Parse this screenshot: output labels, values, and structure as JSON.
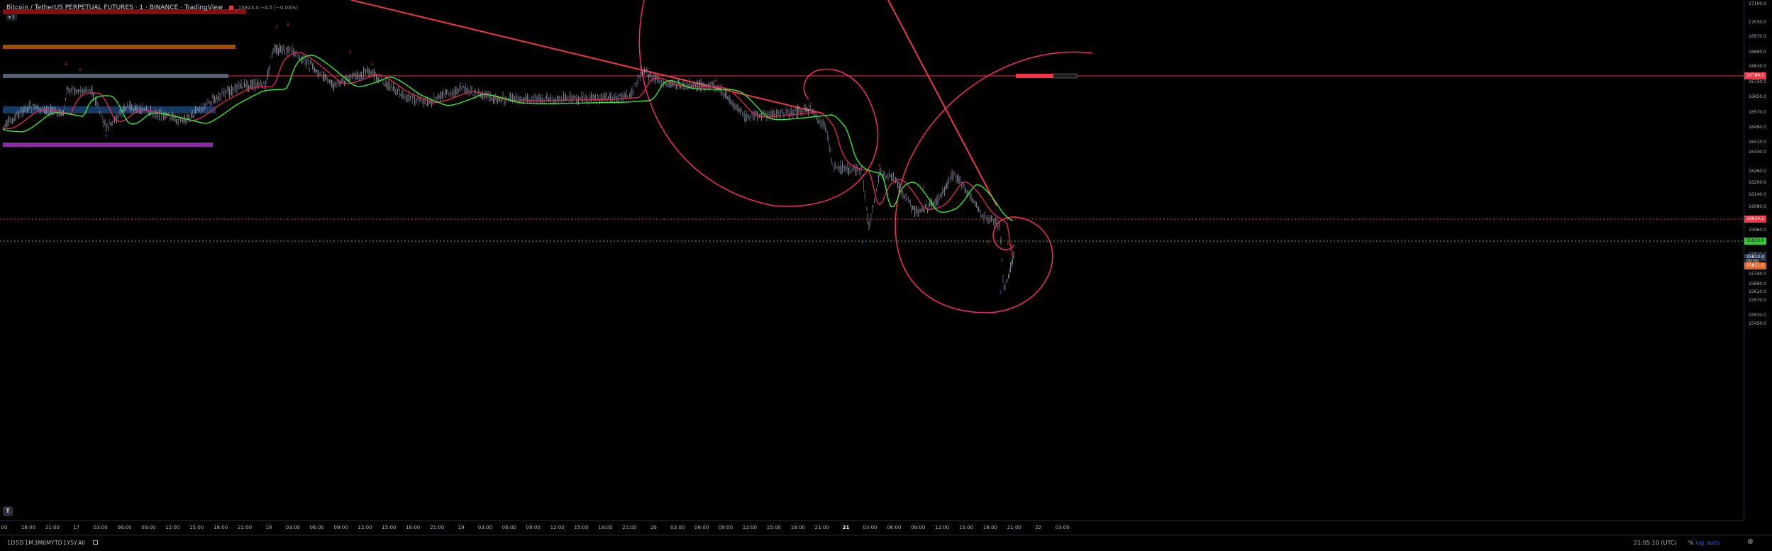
{
  "header": {
    "symbol_title": "Bitcoin / TetherUS PERPETUAL FUTURES · 1 · BINANCE · TradingView",
    "quote": "15813.4 −4.5 (−0.03%)",
    "indicator_pill": "▾ 3"
  },
  "colors": {
    "background": "#000000",
    "candle_up": "#c8ccd6",
    "candle_down": "#7f8aa8",
    "ema_fast": "#e0264f",
    "ema_slow": "#33ee33",
    "drawing_red": "#f23645",
    "drawing_pink": "#ff2a61",
    "zone_darkred": "#8b0e0e",
    "zone_orange": "#a14d00",
    "zone_teal": "#2c6a78",
    "zone_blue": "#173a63",
    "zone_purple": "#8e2aa6",
    "level_red": "#f23645",
    "level_green": "#30d030"
  },
  "price_scale": {
    "ticks": [
      "17100.0",
      "17030.0",
      "16970.0",
      "16890.0",
      "16810.0",
      "16730.0",
      "16650.0",
      "16570.0",
      "16490.0",
      "16410.0",
      "16330.0",
      "16260.0",
      "16200.0",
      "16140.0",
      "16080.0",
      "16020.0",
      "15960.0",
      "15880.0",
      "15820.0",
      "15740.0",
      "15690.0",
      "15610.0",
      "15570.0",
      "15530.0",
      "15450.0"
    ],
    "tag_horizontal_ray": "16780.0",
    "tag_red_level": "16024.2",
    "tag_green_level": "15933.0",
    "tag_last_price": "15813.4",
    "tag_countdown": "00:50",
    "tag_orange": "15821.0"
  },
  "time_scale": {
    "labels": [
      {
        "t": "00",
        "bold": false
      },
      {
        "t": "18:00",
        "bold": false
      },
      {
        "t": "21:00",
        "bold": false
      },
      {
        "t": "17",
        "bold": false
      },
      {
        "t": "03:00",
        "bold": false
      },
      {
        "t": "06:00",
        "bold": false
      },
      {
        "t": "09:00",
        "bold": false
      },
      {
        "t": "12:00",
        "bold": false
      },
      {
        "t": "15:00",
        "bold": false
      },
      {
        "t": "18:00",
        "bold": false
      },
      {
        "t": "21:00",
        "bold": false
      },
      {
        "t": "18",
        "bold": false
      },
      {
        "t": "03:00",
        "bold": false
      },
      {
        "t": "06:00",
        "bold": false
      },
      {
        "t": "09:00",
        "bold": false
      },
      {
        "t": "12:00",
        "bold": false
      },
      {
        "t": "15:00",
        "bold": false
      },
      {
        "t": "18:00",
        "bold": false
      },
      {
        "t": "21:00",
        "bold": false
      },
      {
        "t": "19",
        "bold": false
      },
      {
        "t": "03:00",
        "bold": false
      },
      {
        "t": "06:00",
        "bold": false
      },
      {
        "t": "09:00",
        "bold": false
      },
      {
        "t": "12:00",
        "bold": false
      },
      {
        "t": "15:00",
        "bold": false
      },
      {
        "t": "18:00",
        "bold": false
      },
      {
        "t": "21:00",
        "bold": false
      },
      {
        "t": "20",
        "bold": false
      },
      {
        "t": "03:00",
        "bold": false
      },
      {
        "t": "06:00",
        "bold": false
      },
      {
        "t": "09:00",
        "bold": false
      },
      {
        "t": "12:00",
        "bold": false
      },
      {
        "t": "15:00",
        "bold": false
      },
      {
        "t": "18:00",
        "bold": false
      },
      {
        "t": "21:00",
        "bold": false
      },
      {
        "t": "21",
        "bold": true
      },
      {
        "t": "03:00",
        "bold": false
      },
      {
        "t": "06:00",
        "bold": false
      },
      {
        "t": "09:00",
        "bold": false
      },
      {
        "t": "12:00",
        "bold": false
      },
      {
        "t": "15:00",
        "bold": false
      },
      {
        "t": "18:00",
        "bold": false
      },
      {
        "t": "21:00",
        "bold": false
      },
      {
        "t": "22",
        "bold": false
      },
      {
        "t": "03:00",
        "bold": false
      }
    ]
  },
  "range_selector": [
    "1D",
    "5D",
    "1M",
    "3M",
    "6M",
    "YTD",
    "1Y",
    "5Y",
    "All"
  ],
  "footer": {
    "clock": "21:05:10 (UTC)",
    "percent_label": "%",
    "log_label": "log",
    "auto_label": "auto"
  },
  "icons": {
    "calendar": "calendar-icon",
    "tradingview_logo": "tradingview-logo-icon",
    "settings": "gear-icon"
  }
}
